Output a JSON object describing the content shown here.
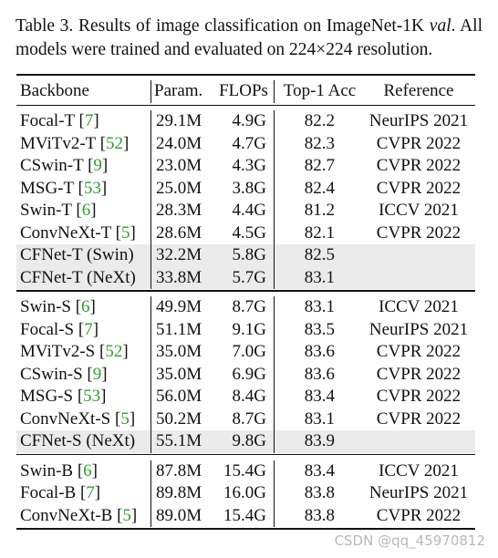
{
  "caption": [
    "Table 3. Results of image classification on ImageNet-1K ",
    "val",
    ". All models were trained and evaluated on 224×224 resolution."
  ],
  "header": {
    "backbone": "Backbone",
    "params": "Param.",
    "flops": "FLOPs",
    "top1": "Top-1 Acc",
    "reference": "Reference"
  },
  "groups": [
    {
      "rows": [
        {
          "backbone": [
            "Focal-T [",
            "7",
            "]"
          ],
          "params": "29.1M",
          "flops": "4.9G",
          "top1": 82.2,
          "reference": "NeurIPS 2021"
        },
        {
          "backbone": [
            "MViTv2-T [",
            "52",
            "]"
          ],
          "params": "24.0M",
          "flops": "4.7G",
          "top1": 82.3,
          "reference": "CVPR 2022"
        },
        {
          "backbone": [
            "CSwin-T [",
            "9",
            "]"
          ],
          "params": "23.0M",
          "flops": "4.3G",
          "top1": 82.7,
          "reference": "CVPR 2022"
        },
        {
          "backbone": [
            "MSG-T [",
            "53",
            "]"
          ],
          "params": "25.0M",
          "flops": "3.8G",
          "top1": 82.4,
          "reference": "CVPR 2022"
        },
        {
          "backbone": [
            "Swin-T [",
            "6",
            "]"
          ],
          "params": "28.3M",
          "flops": "4.4G",
          "top1": 81.2,
          "reference": "ICCV 2021"
        },
        {
          "backbone": [
            "ConvNeXt-T [",
            "5",
            "]"
          ],
          "params": "28.6M",
          "flops": "4.5G",
          "top1": 82.1,
          "reference": "CVPR 2022"
        },
        {
          "backbone": [
            "CFNet-T (Swin)"
          ],
          "params": "32.2M",
          "flops": "5.8G",
          "top1": 82.5,
          "highlight": true
        },
        {
          "backbone": [
            "CFNet-T (NeXt)"
          ],
          "params": "33.8M",
          "flops": "5.7G",
          "top1": 83.1,
          "highlight": true
        }
      ]
    },
    {
      "rows": [
        {
          "backbone": [
            "Swin-S [",
            "6",
            "]"
          ],
          "params": "49.9M",
          "flops": "8.7G",
          "top1": 83.1,
          "reference": "ICCV 2021"
        },
        {
          "backbone": [
            "Focal-S [",
            "7",
            "]"
          ],
          "params": "51.1M",
          "flops": "9.1G",
          "top1": 83.5,
          "reference": "NeurIPS 2021"
        },
        {
          "backbone": [
            "MViTv2-S [",
            "52",
            "]"
          ],
          "params": "35.0M",
          "flops": "7.0G",
          "top1": 83.6,
          "reference": "CVPR 2022"
        },
        {
          "backbone": [
            "CSwin-S [",
            "9",
            "]"
          ],
          "params": "35.0M",
          "flops": "6.9G",
          "top1": 83.6,
          "reference": "CVPR 2022"
        },
        {
          "backbone": [
            "MSG-S [",
            "53",
            "]"
          ],
          "params": "56.0M",
          "flops": "8.4G",
          "top1": 83.4,
          "reference": "CVPR 2022"
        },
        {
          "backbone": [
            "ConvNeXt-S [",
            "5",
            "]"
          ],
          "params": "50.2M",
          "flops": "8.7G",
          "top1": 83.1,
          "reference": "CVPR 2022"
        },
        {
          "backbone": [
            "CFNet-S (NeXt)"
          ],
          "params": "55.1M",
          "flops": "9.8G",
          "top1": 83.9,
          "highlight": true
        }
      ]
    },
    {
      "rows": [
        {
          "backbone": [
            "Swin-B [",
            "6",
            "]"
          ],
          "params": "87.8M",
          "flops": "15.4G",
          "top1": 83.4,
          "reference": "ICCV 2021"
        },
        {
          "backbone": [
            "Focal-B [",
            "7",
            "]"
          ],
          "params": "89.8M",
          "flops": "16.0G",
          "top1": 83.8,
          "reference": "NeurIPS 2021"
        },
        {
          "backbone": [
            "ConvNeXt-B [",
            "5",
            "]"
          ],
          "params": "89.0M",
          "flops": "15.4G",
          "top1": 83.8,
          "reference": "CVPR 2022"
        }
      ]
    }
  ],
  "watermark": "CSDN @qq_45970812"
}
